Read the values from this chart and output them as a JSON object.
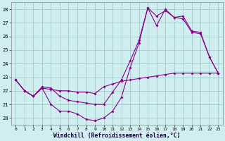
{
  "xlabel": "Windchill (Refroidissement éolien,°C)",
  "bg_color": "#d0eef0",
  "grid_color": "#a0cccc",
  "line_color": "#880088",
  "x_ticks": [
    0,
    1,
    2,
    3,
    4,
    5,
    6,
    7,
    8,
    9,
    10,
    11,
    12,
    13,
    14,
    15,
    16,
    17,
    18,
    19,
    20,
    21,
    22,
    23
  ],
  "ylim": [
    19.5,
    28.5
  ],
  "xlim": [
    -0.5,
    23.5
  ],
  "yticks": [
    20,
    21,
    22,
    23,
    24,
    25,
    26,
    27,
    28
  ],
  "curve1_x": [
    0,
    1,
    2,
    3,
    4,
    5,
    6,
    7,
    8,
    9,
    10,
    11,
    12,
    13,
    14,
    15,
    16,
    17,
    18,
    19,
    20,
    21,
    22,
    23
  ],
  "curve1_y": [
    22.8,
    22.0,
    21.6,
    22.2,
    22.1,
    22.0,
    22.0,
    21.9,
    21.9,
    21.8,
    22.3,
    22.5,
    22.7,
    22.8,
    22.9,
    23.0,
    23.1,
    23.2,
    23.3,
    23.3,
    23.3,
    23.3,
    23.3,
    23.3
  ],
  "curve2_x": [
    0,
    1,
    2,
    3,
    4,
    5,
    6,
    7,
    8,
    9,
    10,
    11,
    12,
    13,
    14,
    15,
    16,
    17,
    18,
    19,
    20,
    21,
    22,
    23
  ],
  "curve2_y": [
    22.8,
    22.0,
    21.6,
    22.2,
    21.0,
    20.5,
    20.5,
    20.3,
    19.9,
    19.8,
    20.0,
    20.5,
    21.5,
    23.7,
    25.5,
    28.1,
    27.5,
    27.9,
    27.4,
    27.3,
    26.3,
    26.2,
    24.5,
    23.3
  ],
  "curve3_x": [
    0,
    1,
    2,
    3,
    4,
    5,
    6,
    7,
    8,
    9,
    10,
    11,
    12,
    13,
    14,
    15,
    16,
    17,
    18,
    19,
    20,
    21,
    22,
    23
  ],
  "curve3_y": [
    22.8,
    22.0,
    21.6,
    22.3,
    22.2,
    21.6,
    21.3,
    21.2,
    21.1,
    21.0,
    21.0,
    21.9,
    22.8,
    24.2,
    25.7,
    28.1,
    26.8,
    28.0,
    27.4,
    27.5,
    26.4,
    26.3,
    24.5,
    23.3
  ]
}
